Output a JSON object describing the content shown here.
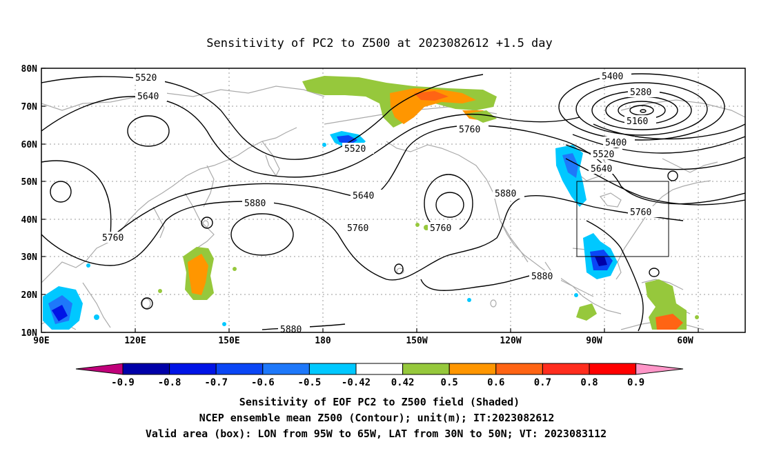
{
  "title": "Sensitivity of PC2 to Z500 at 2023082612 +1.5 day",
  "lat_labels": [
    "80N",
    "70N",
    "60N",
    "50N",
    "40N",
    "30N",
    "20N",
    "10N"
  ],
  "lon_labels": [
    "90E",
    "120E",
    "150E",
    "180",
    "150W",
    "120W",
    "90W",
    "60W"
  ],
  "contour_labels": {
    "c5520a": "5520",
    "c5640a": "5640",
    "c5520b": "5520",
    "c5640b": "5640",
    "c5760a": "5760",
    "c5880a": "5880",
    "c5760b": "5760",
    "c5760c": "5760",
    "c5880b": "5880",
    "c5880c": "5880",
    "c5880d": "5880",
    "c5760d": "5760",
    "c5400a": "5400",
    "c5280": "5280",
    "c5160": "5160",
    "c5400b": "5400",
    "c5520c": "5520",
    "c5640c": "5640",
    "c5760e": "5760"
  },
  "colorbar": {
    "labels": [
      "-0.9",
      "-0.8",
      "-0.7",
      "-0.6",
      "-0.5",
      "-0.42",
      "0.42",
      "0.5",
      "0.6",
      "0.7",
      "0.8",
      "0.9"
    ],
    "colors": {
      "low_arrow": "#c0007a",
      "bins": [
        "#0000a8",
        "#0014e6",
        "#0a46f5",
        "#1e78fa",
        "#00c8ff",
        "#ffffff",
        "#96c83c",
        "#ff9600",
        "#ff6414",
        "#ff2d1e",
        "#ff0000"
      ],
      "high_arrow": "#ff96c8"
    }
  },
  "footer": {
    "line1": "Sensitivity of EOF PC2 to Z500 field (Shaded)",
    "line2": "NCEP ensemble mean Z500 (Contour); unit(m); IT:2023082612",
    "line3": "Valid area (box): LON from 95W to 65W, LAT from 30N to 50N; VT: 2023083112"
  }
}
